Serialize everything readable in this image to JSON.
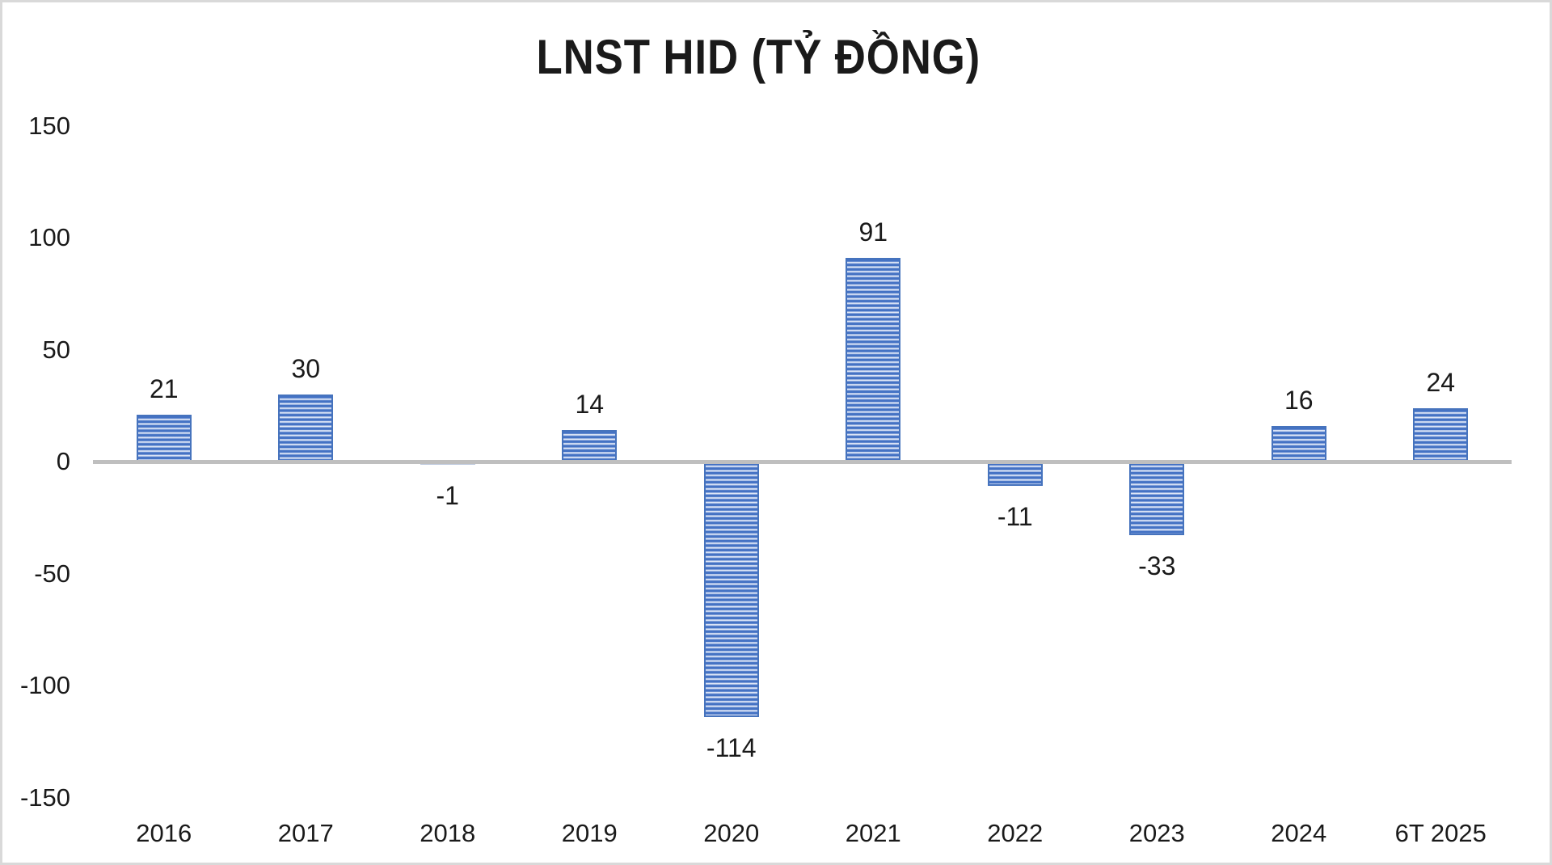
{
  "chart_data": {
    "type": "bar",
    "title": "LNST HID (TỶ ĐỒNG)",
    "categories": [
      "2016",
      "2017",
      "2018",
      "2019",
      "2020",
      "2021",
      "2022",
      "2023",
      "2024",
      "6T 2025"
    ],
    "values": [
      21,
      30,
      -1,
      14,
      -114,
      91,
      -11,
      -33,
      16,
      24
    ],
    "data_labels": [
      "21",
      "30",
      "-1",
      "14",
      "-114",
      "91",
      "-11",
      "-33",
      "16",
      "24"
    ],
    "xlabel": "",
    "ylabel": "",
    "ylim": [
      -150,
      150
    ],
    "yticks": [
      150,
      100,
      50,
      0,
      -50,
      -100,
      -150
    ],
    "grid": false,
    "legend": "none",
    "bar_pattern": "horizontal-stripes",
    "colors": {
      "bar_fill_dark": "#4472c4",
      "bar_fill_light": "#f0f4fb",
      "bar_border": "#4673bd",
      "tiny_bar_fill": "#c2cde0",
      "axis_line": "#bfbfbf",
      "text": "#1a1a1a",
      "frame_border": "#d9d9d9",
      "background": "#ffffff"
    }
  }
}
